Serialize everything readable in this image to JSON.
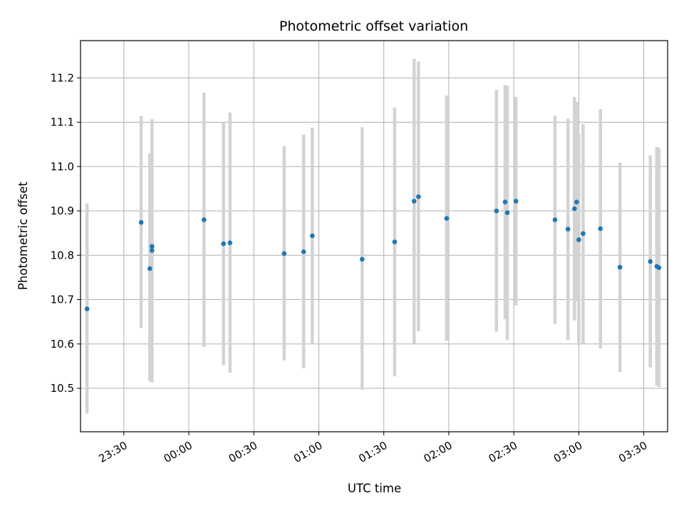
{
  "chart_data": {
    "type": "scatter",
    "title": "Photometric offset variation",
    "xlabel": "UTC time",
    "ylabel": "Photometric offset",
    "x_ticks": [
      "23:30",
      "00:00",
      "00:30",
      "01:00",
      "01:30",
      "02:00",
      "02:30",
      "03:00",
      "03:30"
    ],
    "y_ticks": [
      "10.5",
      "10.6",
      "10.7",
      "10.8",
      "10.9",
      "11.0",
      "11.1",
      "11.2"
    ],
    "xlim": [
      "23:10",
      "03:41"
    ],
    "ylim": [
      10.402,
      11.284
    ],
    "grid": true,
    "colors": {
      "points": "#1f77b4",
      "error_bars": "#d3d3d3",
      "grid": "#b0b0b0"
    },
    "series": [
      {
        "points": [
          {
            "x": "23:13",
            "y": 10.679,
            "ylow": 10.443,
            "yhigh": 10.917
          },
          {
            "x": "23:38",
            "y": 10.874,
            "ylow": 10.636,
            "yhigh": 11.114
          },
          {
            "x": "23:42",
            "y": 10.77,
            "ylow": 10.516,
            "yhigh": 11.03
          },
          {
            "x": "23:43",
            "y": 10.811,
            "ylow": 10.54,
            "yhigh": 11.02
          },
          {
            "x": "23:43",
            "y": 10.82,
            "ylow": 10.513,
            "yhigh": 11.107
          },
          {
            "x": "00:07",
            "y": 10.88,
            "ylow": 10.593,
            "yhigh": 11.167
          },
          {
            "x": "00:16",
            "y": 10.826,
            "ylow": 10.552,
            "yhigh": 11.1
          },
          {
            "x": "00:19",
            "y": 10.828,
            "ylow": 10.535,
            "yhigh": 11.122
          },
          {
            "x": "00:44",
            "y": 10.804,
            "ylow": 10.563,
            "yhigh": 11.046
          },
          {
            "x": "00:53",
            "y": 10.808,
            "ylow": 10.545,
            "yhigh": 11.072
          },
          {
            "x": "00:57",
            "y": 10.844,
            "ylow": 10.6,
            "yhigh": 11.088
          },
          {
            "x": "01:20",
            "y": 10.791,
            "ylow": 10.497,
            "yhigh": 11.089
          },
          {
            "x": "01:35",
            "y": 10.83,
            "ylow": 10.527,
            "yhigh": 11.133
          },
          {
            "x": "01:44",
            "y": 10.922,
            "ylow": 10.601,
            "yhigh": 11.243
          },
          {
            "x": "01:46",
            "y": 10.932,
            "ylow": 10.629,
            "yhigh": 11.237
          },
          {
            "x": "01:59",
            "y": 10.883,
            "ylow": 10.607,
            "yhigh": 11.16
          },
          {
            "x": "02:22",
            "y": 10.9,
            "ylow": 10.628,
            "yhigh": 11.173
          },
          {
            "x": "02:26",
            "y": 10.92,
            "ylow": 10.656,
            "yhigh": 11.184
          },
          {
            "x": "02:27",
            "y": 10.896,
            "ylow": 10.609,
            "yhigh": 11.183
          },
          {
            "x": "02:31",
            "y": 10.922,
            "ylow": 10.687,
            "yhigh": 11.157
          },
          {
            "x": "02:49",
            "y": 10.88,
            "ylow": 10.645,
            "yhigh": 11.115
          },
          {
            "x": "02:55",
            "y": 10.859,
            "ylow": 10.609,
            "yhigh": 11.108
          },
          {
            "x": "02:58",
            "y": 10.905,
            "ylow": 10.653,
            "yhigh": 11.157
          },
          {
            "x": "02:59",
            "y": 10.92,
            "ylow": 10.696,
            "yhigh": 11.146
          },
          {
            "x": "03:00",
            "y": 10.835,
            "ylow": 10.597,
            "yhigh": 11.073
          },
          {
            "x": "03:02",
            "y": 10.849,
            "ylow": 10.601,
            "yhigh": 11.096
          },
          {
            "x": "03:10",
            "y": 10.86,
            "ylow": 10.59,
            "yhigh": 11.13
          },
          {
            "x": "03:19",
            "y": 10.773,
            "ylow": 10.537,
            "yhigh": 11.009
          },
          {
            "x": "03:33",
            "y": 10.786,
            "ylow": 10.547,
            "yhigh": 11.025
          },
          {
            "x": "03:36",
            "y": 10.775,
            "ylow": 10.506,
            "yhigh": 11.044
          },
          {
            "x": "03:37",
            "y": 10.772,
            "ylow": 10.503,
            "yhigh": 11.042
          }
        ]
      }
    ]
  }
}
